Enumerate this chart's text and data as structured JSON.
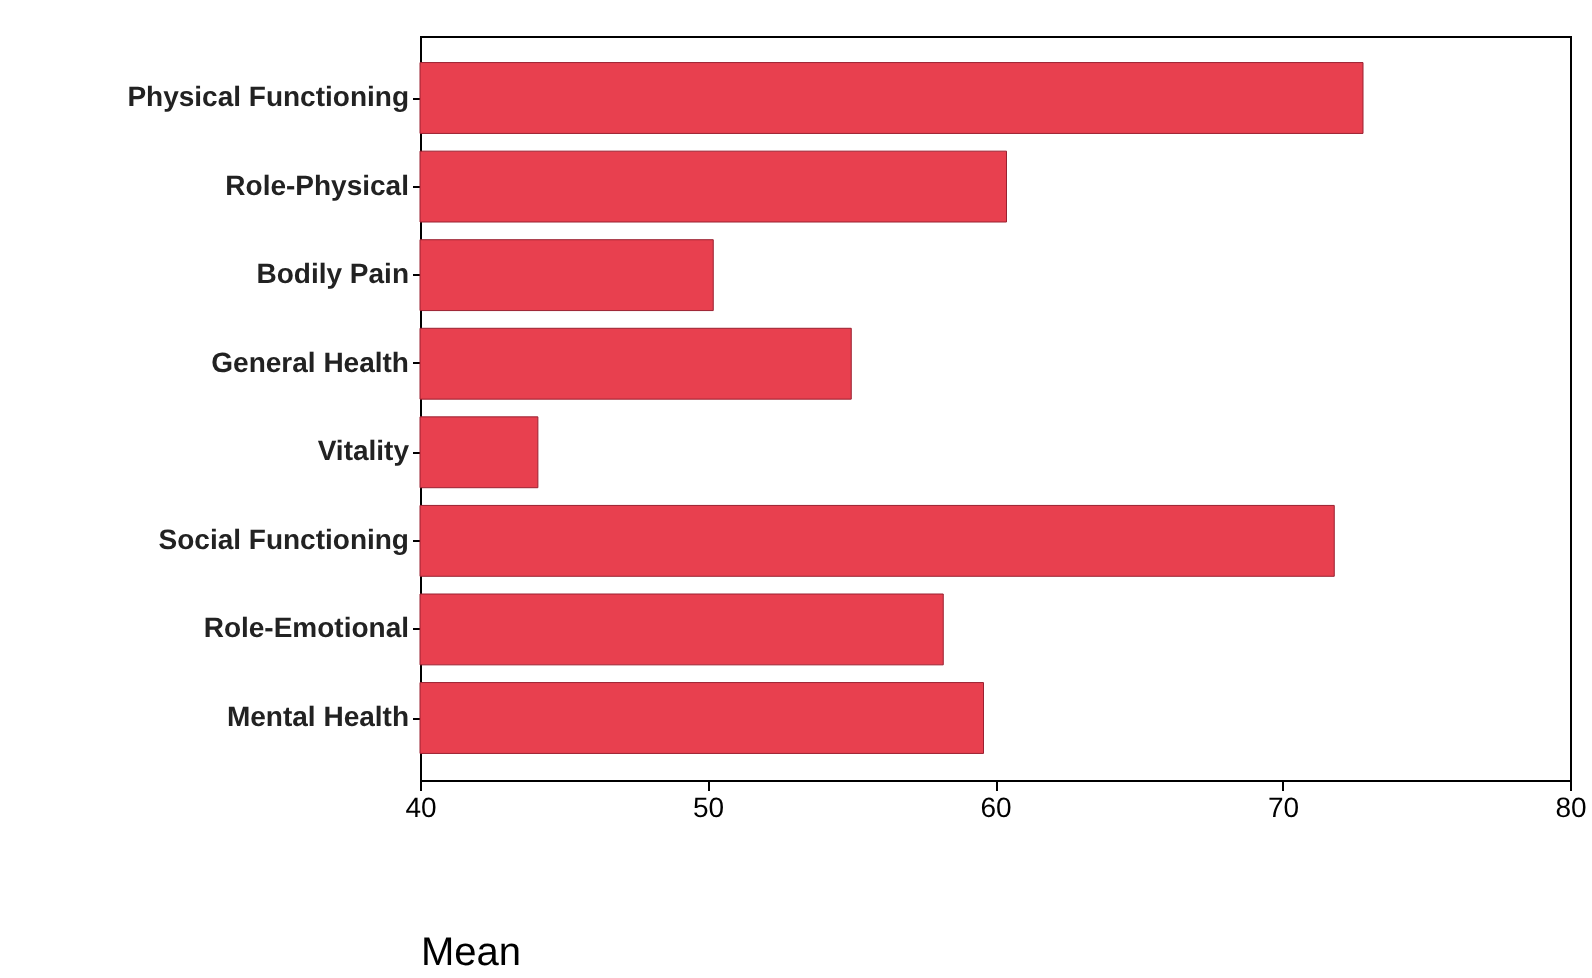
{
  "chart_data": {
    "type": "bar",
    "orientation": "horizontal",
    "xlabel": "Mean",
    "categories": [
      "Physical Functioning",
      "Role-Physical",
      "Bodily Pain",
      "General Health",
      "Vitality",
      "Social Functioning",
      "Role-Emotional",
      "Mental Health"
    ],
    "values": [
      72.8,
      60.4,
      50.2,
      55.0,
      44.1,
      71.8,
      58.2,
      59.6
    ],
    "color": "#e8404f",
    "xlim": [
      40,
      80
    ],
    "xticks": [
      40,
      50,
      60,
      70,
      80
    ],
    "grid": false
  }
}
